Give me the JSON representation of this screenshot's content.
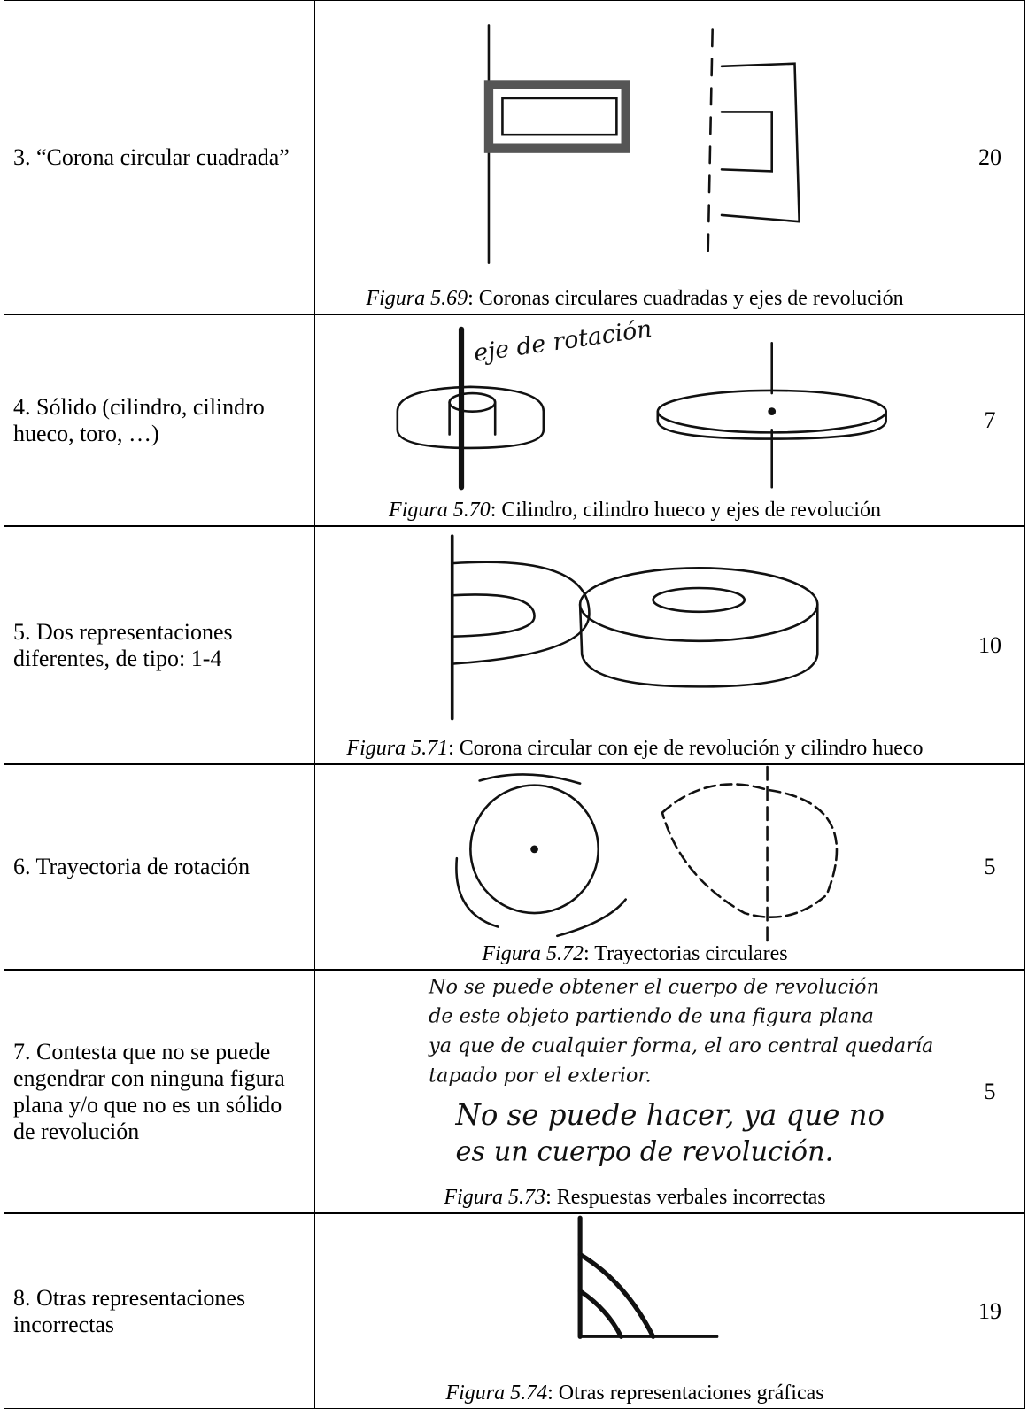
{
  "table": {
    "rows": [
      {
        "category": "3. “Corona circular cuadrada”",
        "figure": {
          "label": "Figura 5.69",
          "caption": ": Coronas circulares cuadradas y ejes de revolución"
        },
        "count": 20
      },
      {
        "category": "4. Sólido (cilindro, cilindro hueco, toro, …)",
        "figure": {
          "label": "Figura 5.70",
          "caption": ": Cilindro, cilindro hueco y ejes de revolución",
          "annotation": "eje de rotación"
        },
        "count": 7
      },
      {
        "category": "5. Dos representaciones diferentes, de tipo: 1-4",
        "figure": {
          "label": "Figura 5.71",
          "caption": ": Corona circular con eje de revolución y cilindro hueco"
        },
        "count": 10
      },
      {
        "category": "6. Trayectoria de rotación",
        "figure": {
          "label": "Figura 5.72",
          "caption": ": Trayectorias circulares"
        },
        "count": 5
      },
      {
        "category": "7. Contesta que no se puede engendrar con ninguna figura plana y/o que no es un sólido de revolución",
        "figure": {
          "label": "Figura 5.73",
          "caption": ": Respuestas verbales incorrectas",
          "handwriting": [
            "No se puede obtener el cuerpo de revolución",
            "de este objeto partiendo de una figura plana",
            "ya que de cualquier forma, el aro central quedaría",
            "tapado por el exterior.",
            "No se puede hacer, ya que no",
            "es un cuerpo de revolución."
          ]
        },
        "count": 5
      },
      {
        "category": "8. Otras representaciones incorrectas",
        "figure": {
          "label": "Figura 5.74",
          "caption": ": Otras representaciones gráficas"
        },
        "count": 19
      }
    ]
  }
}
